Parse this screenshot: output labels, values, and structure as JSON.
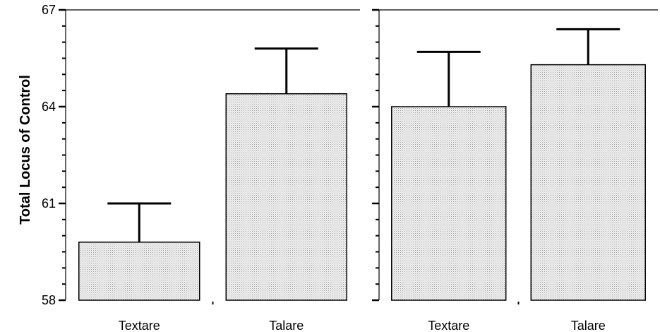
{
  "chart_data": [
    {
      "type": "bar",
      "title": "",
      "xlabel": "",
      "ylabel": "Total Locus of Control",
      "ylim": [
        58,
        67
      ],
      "yticks": [
        58,
        61,
        64,
        67
      ],
      "categories": [
        "Textare",
        "Talare"
      ],
      "values": [
        59.8,
        64.4
      ],
      "error_upper": [
        61.0,
        65.8
      ],
      "bar_pattern": "stipple-gray"
    },
    {
      "type": "bar",
      "title": "",
      "xlabel": "",
      "ylabel": "",
      "ylim": [
        58,
        67
      ],
      "yticks": [
        58,
        61,
        64,
        67
      ],
      "categories": [
        "Textare",
        "Talare"
      ],
      "values": [
        64.0,
        65.3
      ],
      "error_upper": [
        65.7,
        66.4
      ],
      "bar_pattern": "stipple-gray"
    }
  ]
}
